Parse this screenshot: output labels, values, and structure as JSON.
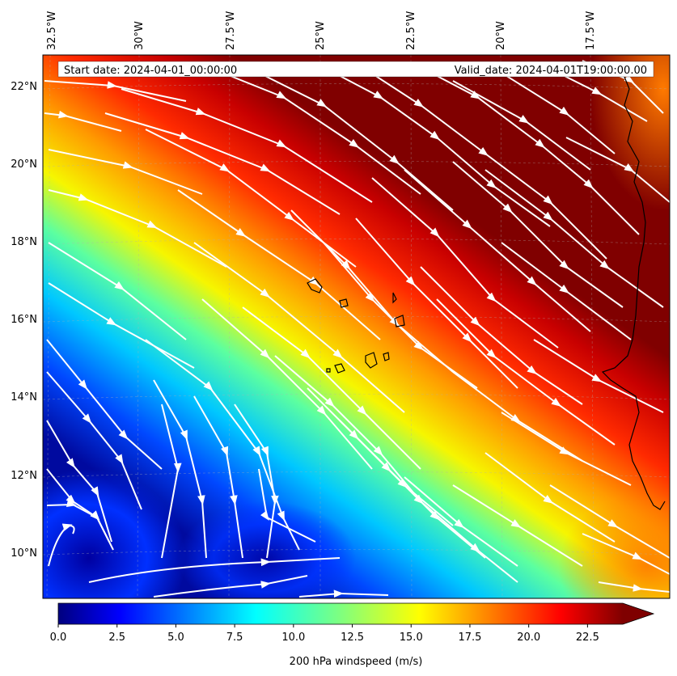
{
  "header": {
    "start_date": "Start date: 2024-04-01_00:00:00",
    "valid_date": "Valid_date: 2024-04-01T19:00:00.00"
  },
  "map": {
    "lon_ticks": [
      "32.5°W",
      "30°W",
      "27.5°W",
      "25°W",
      "22.5°W",
      "20°W",
      "17.5°W"
    ],
    "lat_ticks": [
      "22°N",
      "20°N",
      "18°N",
      "16°N",
      "14°N",
      "12°N",
      "10°N"
    ],
    "field": "200 hPa windspeed",
    "colormap": "jet",
    "overlay": "white streamlines",
    "coastline_color": "#000000",
    "streamline_color": "#ffffff"
  },
  "colorbar": {
    "label": "200 hPa windspeed (m/s)",
    "ticks": [
      "0.0",
      "2.5",
      "5.0",
      "7.5",
      "10.0",
      "12.5",
      "15.0",
      "17.5",
      "20.0",
      "22.5"
    ],
    "min": 0,
    "max": 24,
    "extend": "max"
  }
}
